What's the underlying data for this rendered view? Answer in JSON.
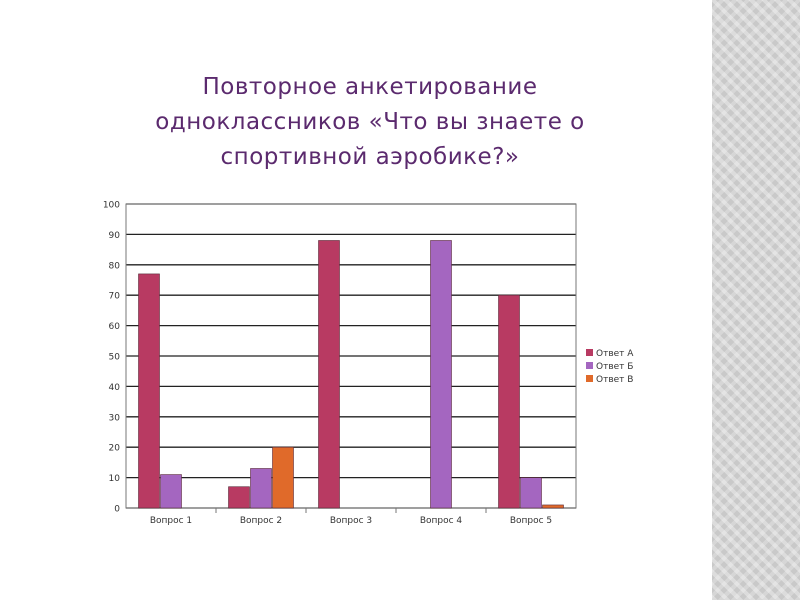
{
  "slide": {
    "title_lines": [
      "Повторное анкетирование",
      "одноклассников «Что вы знаете о",
      "спортивной аэробике?»"
    ]
  },
  "chart_data": {
    "type": "bar",
    "categories": [
      "Вопрос 1",
      "Вопрос 2",
      "Вопрос 3",
      "Вопрос 4",
      "Вопрос 5"
    ],
    "series": [
      {
        "name": "Ответ А",
        "color": "#b83a62",
        "values": [
          77,
          7,
          88,
          0,
          70
        ]
      },
      {
        "name": "Ответ Б",
        "color": "#a466c0",
        "values": [
          11,
          13,
          0,
          88,
          10
        ]
      },
      {
        "name": "Ответ В",
        "color": "#e06a2a",
        "values": [
          0,
          20,
          0,
          0,
          1
        ]
      }
    ],
    "ylim": [
      0,
      100
    ],
    "yticks": [
      0,
      10,
      20,
      30,
      40,
      50,
      60,
      70,
      80,
      90,
      100
    ],
    "grid": true,
    "legend_position": "right"
  }
}
